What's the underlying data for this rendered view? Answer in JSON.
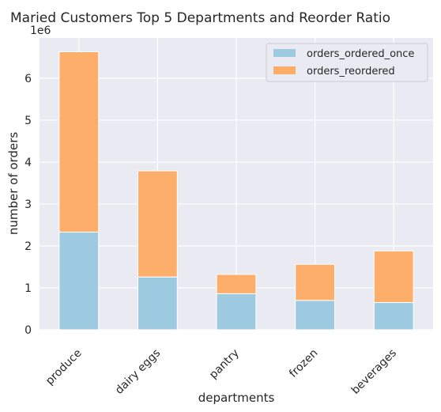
{
  "chart_data": {
    "type": "bar",
    "stacked": true,
    "title": "Maried Customers Top 5 Departments and Reorder Ratio",
    "xlabel": "departments",
    "ylabel": "number of orders",
    "y_offset_label": "1e6",
    "categories": [
      "produce",
      "dairy eggs",
      "pantry",
      "frozen",
      "beverages"
    ],
    "series": [
      {
        "name": "orders_ordered_once",
        "color": "#9ecae1",
        "values": [
          2330000,
          1260000,
          860000,
          700000,
          650000
        ]
      },
      {
        "name": "orders_reordered",
        "color": "#fdae6b",
        "values": [
          4300000,
          2530000,
          460000,
          860000,
          1230000
        ]
      }
    ],
    "y_ticks": [
      "0",
      "1",
      "2",
      "3",
      "4",
      "5",
      "6"
    ],
    "y_tick_values": [
      0,
      1000000,
      2000000,
      3000000,
      4000000,
      5000000,
      6000000
    ],
    "ylim": [
      0,
      6960000
    ],
    "grid": true,
    "legend_position": "top-right",
    "plot_background": "#eaeaf2"
  }
}
